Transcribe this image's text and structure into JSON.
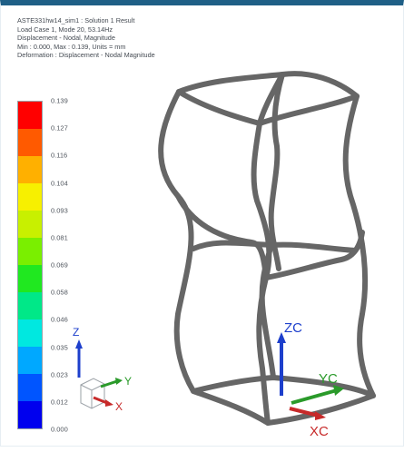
{
  "info": {
    "line1": "ASTE331hw14_sim1 : Solution 1 Result",
    "line2": "Load Case 1, Mode 20, 53.14Hz",
    "line3": "Displacement - Nodal, Magnitude",
    "line4": "Min : 0.000, Max : 0.139, Units = mm",
    "line5": "Deformation : Displacement - Nodal Magnitude"
  },
  "legend": {
    "labels": [
      "0.139",
      "0.127",
      "0.116",
      "0.104",
      "0.093",
      "0.081",
      "0.069",
      "0.058",
      "0.046",
      "0.035",
      "0.023",
      "0.012",
      "0.000"
    ]
  },
  "triad_small": {
    "z": "Z",
    "y": "Y",
    "x": "X"
  },
  "triad_large": {
    "zc": "ZC",
    "yc": "YC",
    "xc": "XC"
  },
  "colors": {
    "header_bar": "#1f5f86",
    "mesh": "#666666",
    "axis_z": "#1d3fcc",
    "axis_y": "#2a9a2a",
    "axis_x": "#c72a2a"
  }
}
